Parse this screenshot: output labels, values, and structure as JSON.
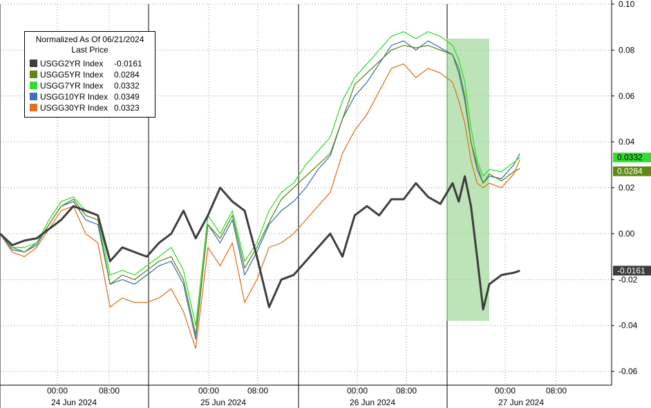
{
  "chart_data": {
    "type": "line",
    "legend": {
      "title": "Normalized As Of 06/21/2024",
      "subtitle": "Last Price",
      "placement": "top-left"
    },
    "x_axis": {
      "time_ticks": [
        "00:00",
        "08:00",
        "00:00",
        "08:00",
        "00:00",
        "08:00",
        "00:00",
        "08:00"
      ],
      "day_labels": [
        "24 Jun 2024",
        "25 Jun 2024",
        "26 Jun 2024",
        "27 Jun 2024"
      ]
    },
    "y_axis": {
      "position": "right",
      "ylim": [
        -0.066,
        0.1
      ],
      "ticks": [
        "0.10",
        "0.08",
        "0.06",
        "0.04",
        "0.02",
        "0.00",
        "-0.02",
        "-0.04",
        "-0.06"
      ]
    },
    "grid": "dotted",
    "highlight": {
      "x_range": [
        0.73,
        0.8
      ],
      "y_range": [
        -0.038,
        0.085
      ],
      "color": "#9fd89a"
    },
    "series": [
      {
        "name": "USGG2YR Index",
        "last": "-0.0161",
        "color": "#3d3d3d",
        "x": [
          0.0,
          0.02,
          0.04,
          0.06,
          0.08,
          0.1,
          0.12,
          0.14,
          0.16,
          0.18,
          0.2,
          0.22,
          0.24,
          0.26,
          0.28,
          0.3,
          0.32,
          0.34,
          0.36,
          0.38,
          0.4,
          0.42,
          0.44,
          0.46,
          0.48,
          0.5,
          0.52,
          0.54,
          0.56,
          0.58,
          0.6,
          0.62,
          0.64,
          0.66,
          0.68,
          0.7,
          0.72,
          0.74,
          0.75,
          0.76,
          0.77,
          0.78,
          0.79,
          0.8,
          0.82,
          0.84,
          0.85
        ],
        "values": [
          0.0,
          -0.005,
          -0.003,
          -0.002,
          0.002,
          0.006,
          0.012,
          0.01,
          0.008,
          -0.012,
          -0.006,
          -0.008,
          -0.01,
          -0.004,
          0.0,
          0.01,
          -0.002,
          0.008,
          0.02,
          0.014,
          0.01,
          -0.01,
          -0.032,
          -0.02,
          -0.018,
          -0.012,
          -0.006,
          0.0,
          -0.01,
          0.008,
          0.012,
          0.008,
          0.015,
          0.015,
          0.022,
          0.016,
          0.013,
          0.022,
          0.014,
          0.025,
          0.012,
          -0.01,
          -0.033,
          -0.022,
          -0.018,
          -0.017,
          -0.0161
        ]
      },
      {
        "name": "USGG5YR Index",
        "last": "0.0284",
        "color": "#5e8a13",
        "x": [
          0.0,
          0.02,
          0.04,
          0.06,
          0.08,
          0.1,
          0.12,
          0.14,
          0.16,
          0.18,
          0.2,
          0.22,
          0.24,
          0.26,
          0.28,
          0.3,
          0.32,
          0.34,
          0.36,
          0.38,
          0.4,
          0.42,
          0.44,
          0.46,
          0.48,
          0.5,
          0.52,
          0.54,
          0.56,
          0.58,
          0.6,
          0.62,
          0.64,
          0.66,
          0.68,
          0.7,
          0.72,
          0.74,
          0.75,
          0.76,
          0.77,
          0.78,
          0.79,
          0.8,
          0.82,
          0.84,
          0.85
        ],
        "values": [
          0.0,
          -0.006,
          -0.008,
          -0.004,
          0.004,
          0.012,
          0.015,
          0.008,
          0.006,
          -0.022,
          -0.018,
          -0.02,
          -0.016,
          -0.012,
          -0.01,
          -0.02,
          -0.044,
          0.004,
          -0.002,
          0.008,
          -0.015,
          -0.006,
          0.005,
          0.015,
          0.02,
          0.025,
          0.03,
          0.035,
          0.05,
          0.065,
          0.07,
          0.075,
          0.08,
          0.082,
          0.081,
          0.082,
          0.08,
          0.078,
          0.072,
          0.06,
          0.04,
          0.03,
          0.022,
          0.026,
          0.023,
          0.027,
          0.0284
        ]
      },
      {
        "name": "USGG7YR Index",
        "last": "0.0332",
        "color": "#32dc32",
        "x": [
          0.0,
          0.02,
          0.04,
          0.06,
          0.08,
          0.1,
          0.12,
          0.14,
          0.16,
          0.18,
          0.2,
          0.22,
          0.24,
          0.26,
          0.28,
          0.3,
          0.32,
          0.34,
          0.36,
          0.38,
          0.4,
          0.42,
          0.44,
          0.46,
          0.48,
          0.5,
          0.52,
          0.54,
          0.56,
          0.58,
          0.6,
          0.62,
          0.64,
          0.66,
          0.68,
          0.7,
          0.72,
          0.74,
          0.75,
          0.76,
          0.77,
          0.78,
          0.79,
          0.8,
          0.82,
          0.84,
          0.85
        ],
        "values": [
          0.0,
          -0.006,
          -0.006,
          -0.004,
          0.006,
          0.014,
          0.016,
          0.01,
          0.008,
          -0.018,
          -0.016,
          -0.018,
          -0.014,
          -0.01,
          -0.006,
          -0.016,
          -0.04,
          0.008,
          0.0,
          0.01,
          -0.012,
          -0.004,
          0.01,
          0.018,
          0.022,
          0.03,
          0.036,
          0.042,
          0.058,
          0.068,
          0.074,
          0.08,
          0.086,
          0.088,
          0.085,
          0.088,
          0.086,
          0.082,
          0.076,
          0.066,
          0.046,
          0.032,
          0.025,
          0.028,
          0.027,
          0.031,
          0.0332
        ]
      },
      {
        "name": "USGG10YR Index",
        "last": "0.0349",
        "color": "#3d72b8",
        "x": [
          0.0,
          0.02,
          0.04,
          0.06,
          0.08,
          0.1,
          0.12,
          0.14,
          0.16,
          0.18,
          0.2,
          0.22,
          0.24,
          0.26,
          0.28,
          0.3,
          0.32,
          0.34,
          0.36,
          0.38,
          0.4,
          0.42,
          0.44,
          0.46,
          0.48,
          0.5,
          0.52,
          0.54,
          0.56,
          0.58,
          0.6,
          0.62,
          0.64,
          0.66,
          0.68,
          0.7,
          0.72,
          0.74,
          0.75,
          0.76,
          0.77,
          0.78,
          0.79,
          0.8,
          0.82,
          0.84,
          0.85
        ],
        "values": [
          0.0,
          -0.007,
          -0.008,
          -0.005,
          0.004,
          0.012,
          0.014,
          0.006,
          0.004,
          -0.022,
          -0.02,
          -0.022,
          -0.018,
          -0.014,
          -0.012,
          -0.022,
          -0.046,
          0.004,
          -0.004,
          0.006,
          -0.018,
          -0.008,
          0.004,
          0.01,
          0.014,
          0.02,
          0.028,
          0.034,
          0.05,
          0.06,
          0.066,
          0.074,
          0.082,
          0.084,
          0.08,
          0.084,
          0.081,
          0.078,
          0.07,
          0.058,
          0.04,
          0.028,
          0.022,
          0.025,
          0.024,
          0.03,
          0.0349
        ]
      },
      {
        "name": "USGG30YR Index",
        "last": "0.0323",
        "color": "#e0721f",
        "x": [
          0.0,
          0.02,
          0.04,
          0.06,
          0.08,
          0.1,
          0.12,
          0.14,
          0.16,
          0.18,
          0.2,
          0.22,
          0.24,
          0.26,
          0.28,
          0.3,
          0.32,
          0.34,
          0.36,
          0.38,
          0.4,
          0.42,
          0.44,
          0.46,
          0.48,
          0.5,
          0.52,
          0.54,
          0.56,
          0.58,
          0.6,
          0.62,
          0.64,
          0.66,
          0.68,
          0.7,
          0.72,
          0.74,
          0.75,
          0.76,
          0.77,
          0.78,
          0.79,
          0.8,
          0.82,
          0.84,
          0.85
        ],
        "values": [
          0.0,
          -0.008,
          -0.01,
          -0.006,
          0.002,
          0.01,
          0.012,
          0.0,
          -0.004,
          -0.032,
          -0.028,
          -0.03,
          -0.03,
          -0.028,
          -0.024,
          -0.034,
          -0.05,
          -0.006,
          -0.014,
          -0.004,
          -0.03,
          -0.02,
          -0.006,
          -0.004,
          0.0,
          0.006,
          0.012,
          0.018,
          0.035,
          0.045,
          0.052,
          0.062,
          0.072,
          0.074,
          0.068,
          0.072,
          0.07,
          0.066,
          0.058,
          0.048,
          0.032,
          0.022,
          0.02,
          0.022,
          0.02,
          0.026,
          0.0323
        ]
      }
    ],
    "end_tags": [
      {
        "text": "0.0332",
        "value": 0.0332,
        "bg": "#32dc32",
        "fg": "#000000"
      },
      {
        "text": "0.0284",
        "value": 0.0284,
        "bg": "#5e8a13",
        "fg": "#ffffff"
      },
      {
        "text": "-0.0161",
        "value": -0.0161,
        "bg": "#3d3d3d",
        "fg": "#ffffff"
      }
    ]
  }
}
